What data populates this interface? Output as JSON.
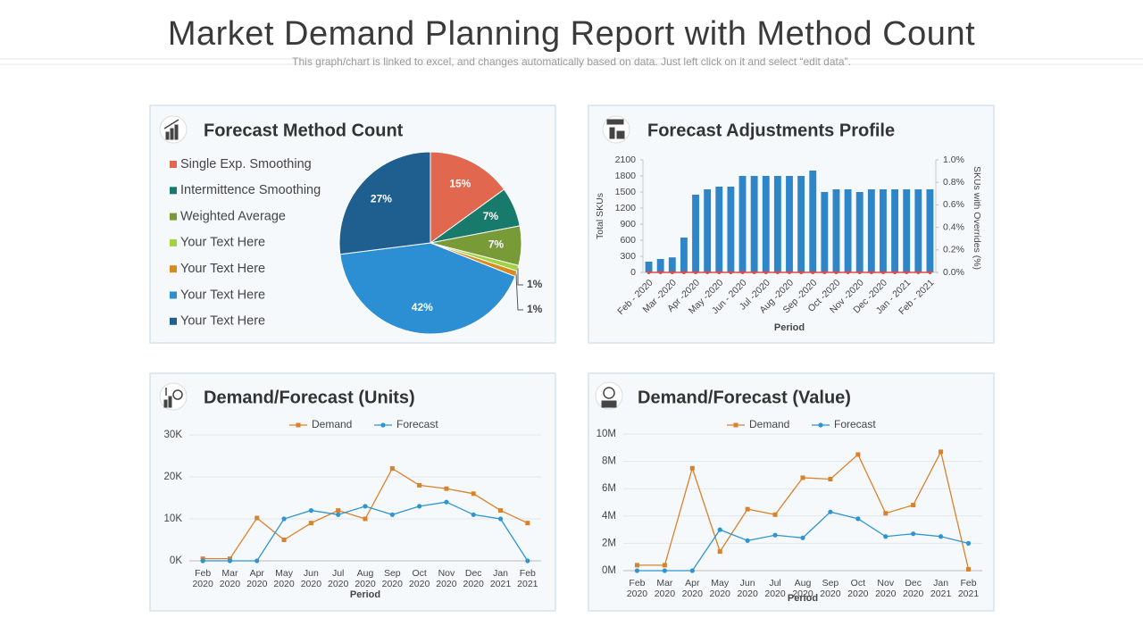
{
  "header": {
    "title": "Market Demand Planning Report with Method Count",
    "subtitle": "This graph/chart is linked to excel, and changes automatically based on data. Just left click on it and select “edit data”."
  },
  "chart_data": [
    {
      "type": "pie",
      "title": "Forecast Method Count",
      "categories": [
        "Single Exp. Smoothing",
        "Intermittence Smoothing",
        "Weighted Average",
        "Your Text Here",
        "Your Text Here",
        "Your Text Here",
        "Your Text Here"
      ],
      "values": [
        15,
        7,
        7,
        1,
        1,
        42,
        27
      ],
      "value_labels": [
        "15%",
        "7%",
        "7%",
        "1%",
        "1%",
        "42%",
        "27%"
      ],
      "colors": [
        "#e2674f",
        "#177a6a",
        "#789a37",
        "#9fd33f",
        "#d88a1e",
        "#2c8fd3",
        "#1e5f90"
      ]
    },
    {
      "type": "bar",
      "title": "Forecast Adjustments Profile",
      "categories": [
        "Feb - 2020",
        null,
        "Mar -2020",
        null,
        "Apr -2020",
        null,
        "May -2020",
        null,
        "Jun - 2020",
        null,
        "Jul -2020",
        null,
        "Aug -2020",
        null,
        "Sep -2020",
        null,
        "Oct -2020",
        null,
        "Nov -2020",
        null,
        "Dec -2020",
        null,
        "Jan - 2021",
        null,
        "Feb - 2021"
      ],
      "series": [
        {
          "color": "#2e86c8",
          "values": [
            200,
            250,
            280,
            650,
            1450,
            1550,
            1600,
            1600,
            1800,
            1800,
            1800,
            1800,
            1800,
            1800,
            1900,
            1500,
            1550,
            1550,
            1500,
            1550,
            1550,
            1550,
            1550,
            1550,
            1550
          ]
        },
        {
          "color": "#e04848",
          "axis": "y2",
          "values": [
            0,
            0,
            0,
            0,
            0,
            0,
            0,
            0,
            0,
            0,
            0,
            0,
            0,
            0,
            0,
            0,
            0,
            0,
            0,
            0,
            0,
            0,
            0,
            0,
            0
          ]
        }
      ],
      "ylim": [
        0,
        2100
      ],
      "yticks": [
        0,
        300,
        600,
        900,
        1200,
        1500,
        1800,
        2100
      ],
      "y2lim": [
        0,
        1
      ],
      "y2ticks": [
        {
          "value": 0,
          "label": "0.0%"
        },
        {
          "value": 0.2,
          "label": "0.2%"
        },
        {
          "value": 0.4,
          "label": "0.4%"
        },
        {
          "value": 0.6,
          "label": "0.6%"
        },
        {
          "value": 0.8,
          "label": "0.8%"
        },
        {
          "value": 1,
          "label": "1.0%"
        }
      ],
      "xlabel": "Period",
      "ylabel": "Total SKUs",
      "y2label": "SKUs with Overrides (%)"
    },
    {
      "type": "line",
      "title": "Demand/Forecast (Units)",
      "categories": [
        "Feb 2020",
        "Mar 2020",
        "Apr 2020",
        "May 2020",
        "Jun 2020",
        "Jul 2020",
        "Aug 2020",
        "Sep 2020",
        "Oct 2020",
        "Nov 2020",
        "Dec 2020",
        "Jan 2021",
        "Feb 2021"
      ],
      "series": [
        {
          "name": "Demand",
          "color": "#d9822b",
          "marker": "square",
          "values": [
            500,
            500,
            10200,
            5000,
            9000,
            12000,
            10000,
            22000,
            18000,
            17200,
            16000,
            12000,
            9000
          ]
        },
        {
          "name": "Forecast",
          "color": "#2e95d0",
          "marker": "circle",
          "values": [
            0,
            0,
            0,
            10000,
            12000,
            11000,
            13000,
            11000,
            13000,
            14000,
            11000,
            10000,
            0
          ]
        }
      ],
      "ylim": [
        0,
        30000
      ],
      "yticks": [
        {
          "value": 0,
          "label": "0K"
        },
        {
          "value": 10000,
          "label": "10K"
        },
        {
          "value": 20000,
          "label": "20K"
        },
        {
          "value": 30000,
          "label": "30K"
        }
      ],
      "grid": true,
      "xlabel": "Period"
    },
    {
      "type": "line",
      "title": "Demand/Forecast (Value)",
      "categories": [
        "Feb 2020",
        "Mar 2020",
        "Apr 2020",
        "May 2020",
        "Jun 2020",
        "Jul 2020",
        "Aug 2020",
        "Sep 2020",
        "Oct 2020",
        "Nov 2020",
        "Dec 2020",
        "Jan 2021",
        "Feb 2021"
      ],
      "series": [
        {
          "name": "Demand",
          "color": "#d9822b",
          "marker": "square",
          "values": [
            400000,
            400000,
            7500000,
            1400000,
            4500000,
            4100000,
            6800000,
            6700000,
            8500000,
            4200000,
            4800000,
            8700000,
            100000
          ]
        },
        {
          "name": "Forecast",
          "color": "#2e95d0",
          "marker": "circle",
          "values": [
            0,
            0,
            0,
            3000000,
            2200000,
            2600000,
            2400000,
            4300000,
            3800000,
            2500000,
            2700000,
            2500000,
            2000000
          ]
        }
      ],
      "ylim": [
        0,
        10000000
      ],
      "yticks": [
        {
          "value": 0,
          "label": "0M"
        },
        {
          "value": 2000000,
          "label": "2M"
        },
        {
          "value": 4000000,
          "label": "4M"
        },
        {
          "value": 6000000,
          "label": "6M"
        },
        {
          "value": 8000000,
          "label": "8M"
        },
        {
          "value": 10000000,
          "label": "10M"
        }
      ],
      "grid": true,
      "xlabel": "Period"
    }
  ]
}
